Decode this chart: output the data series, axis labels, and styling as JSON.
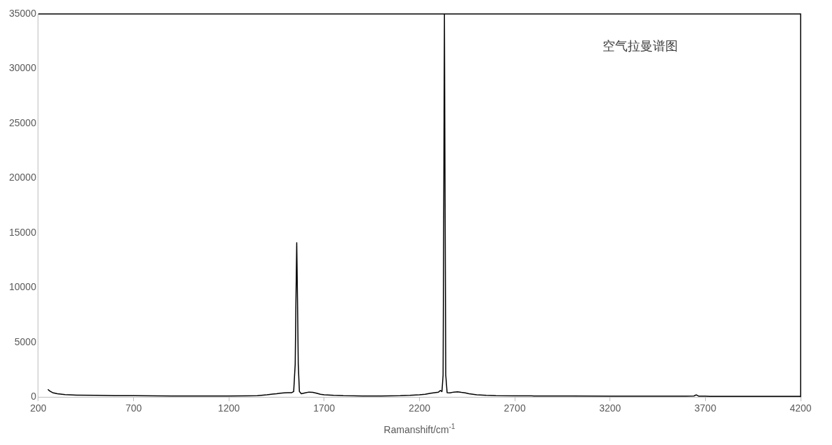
{
  "chart_data": {
    "type": "line",
    "annotations": [
      "空气拉曼谱图"
    ],
    "xlabel": "Ramanshift/cm$^{-1}$",
    "xlim": [
      200,
      4200
    ],
    "xticks": [
      200,
      700,
      1200,
      1700,
      2200,
      2700,
      3200,
      3700,
      4200
    ],
    "ylim": [
      0,
      35000
    ],
    "yticks": [
      0,
      5000,
      10000,
      15000,
      20000,
      25000,
      30000,
      35000
    ],
    "grid": false,
    "legend": false,
    "marker": "none",
    "line_style": "solid",
    "series": [
      {
        "color": "#000000",
        "x": [
          250,
          260,
          275,
          300,
          340,
          400,
          500,
          600,
          700,
          800,
          900,
          1000,
          1100,
          1200,
          1300,
          1350,
          1400,
          1430,
          1450,
          1470,
          1490,
          1510,
          1530,
          1540,
          1548,
          1552,
          1556,
          1560,
          1564,
          1570,
          1580,
          1600,
          1620,
          1640,
          1660,
          1680,
          1700,
          1750,
          1800,
          1900,
          2000,
          2100,
          2150,
          2200,
          2230,
          2260,
          2280,
          2300,
          2310,
          2318,
          2324,
          2328,
          2331,
          2334,
          2338,
          2345,
          2360,
          2380,
          2400,
          2420,
          2440,
          2460,
          2480,
          2500,
          2550,
          2600,
          2700,
          2800,
          3000,
          3200,
          3400,
          3600,
          3640,
          3652,
          3665,
          3700,
          3800,
          4000,
          4200
        ],
        "values": [
          700,
          550,
          400,
          300,
          220,
          180,
          150,
          130,
          120,
          110,
          100,
          100,
          100,
          100,
          110,
          130,
          200,
          260,
          300,
          350,
          380,
          400,
          400,
          500,
          3000,
          9000,
          14100,
          9000,
          3000,
          500,
          300,
          380,
          450,
          420,
          350,
          250,
          200,
          150,
          120,
          100,
          100,
          120,
          150,
          200,
          250,
          350,
          400,
          450,
          600,
          500,
          2000,
          20000,
          35000,
          20000,
          2000,
          400,
          380,
          450,
          480,
          420,
          380,
          300,
          250,
          200,
          150,
          120,
          110,
          100,
          90,
          80,
          70,
          70,
          90,
          200,
          80,
          70,
          60,
          60,
          60
        ]
      }
    ]
  }
}
